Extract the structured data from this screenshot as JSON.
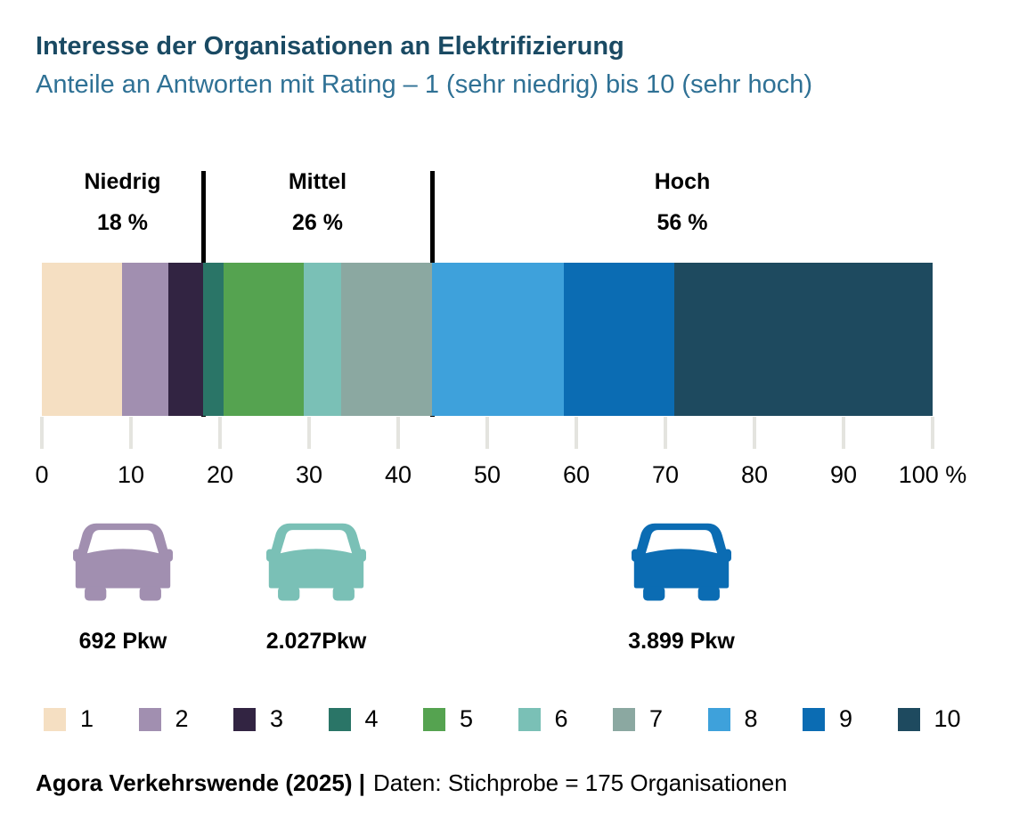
{
  "header": {
    "title": "Interesse der Organisationen an Elektrifizierung",
    "subtitle": "Anteile an Antworten mit Rating – 1 (sehr niedrig) bis 10 (sehr hoch)"
  },
  "chart_data": {
    "type": "bar",
    "orientation": "horizontal-stacked",
    "title": "Interesse der Organisationen an Elektrifizierung",
    "categories": [
      "1",
      "2",
      "3",
      "4",
      "5",
      "6",
      "7",
      "8",
      "9",
      "10"
    ],
    "values": [
      9.0,
      5.2,
      3.9,
      2.3,
      9.0,
      4.2,
      10.2,
      14.8,
      12.4,
      29.0
    ],
    "colors": [
      "#F5DFC2",
      "#A18FB0",
      "#322442",
      "#2A7567",
      "#55A350",
      "#7AC0B6",
      "#8BA8A1",
      "#3EA1DB",
      "#0B6CB3",
      "#1E4A5F"
    ],
    "xlim": [
      0,
      100
    ],
    "x_ticks": [
      "0",
      "10",
      "20",
      "30",
      "40",
      "50",
      "60",
      "70",
      "80",
      "90",
      "100 %"
    ],
    "tick_color": "#E4E4DF",
    "divider_color": "#000000",
    "dividers_after_rating": [
      3,
      7
    ],
    "groups": [
      {
        "label": "Niedrig",
        "pct_label": "18 %"
      },
      {
        "label": "Mittel",
        "pct_label": "26 %"
      },
      {
        "label": "Hoch",
        "pct_label": "56 %"
      }
    ]
  },
  "cars": [
    {
      "label": "692 Pkw",
      "color": "#A18FB0"
    },
    {
      "label": "2.027Pkw",
      "color": "#7AC0B6"
    },
    {
      "label": "3.899 Pkw",
      "color": "#0B6CB3"
    }
  ],
  "legend": [
    {
      "label": "1",
      "color": "#F5DFC2"
    },
    {
      "label": "2",
      "color": "#A18FB0"
    },
    {
      "label": "3",
      "color": "#322442"
    },
    {
      "label": "4",
      "color": "#2A7567"
    },
    {
      "label": "5",
      "color": "#55A350"
    },
    {
      "label": "6",
      "color": "#7AC0B6"
    },
    {
      "label": "7",
      "color": "#8BA8A1"
    },
    {
      "label": "8",
      "color": "#3EA1DB"
    },
    {
      "label": "9",
      "color": "#0B6CB3"
    },
    {
      "label": "10",
      "color": "#1E4A5F"
    }
  ],
  "footer": {
    "source_bold": "Agora Verkehrswende (2025) |",
    "source_regular": "Daten: Stichprobe = 175 Organisationen"
  }
}
